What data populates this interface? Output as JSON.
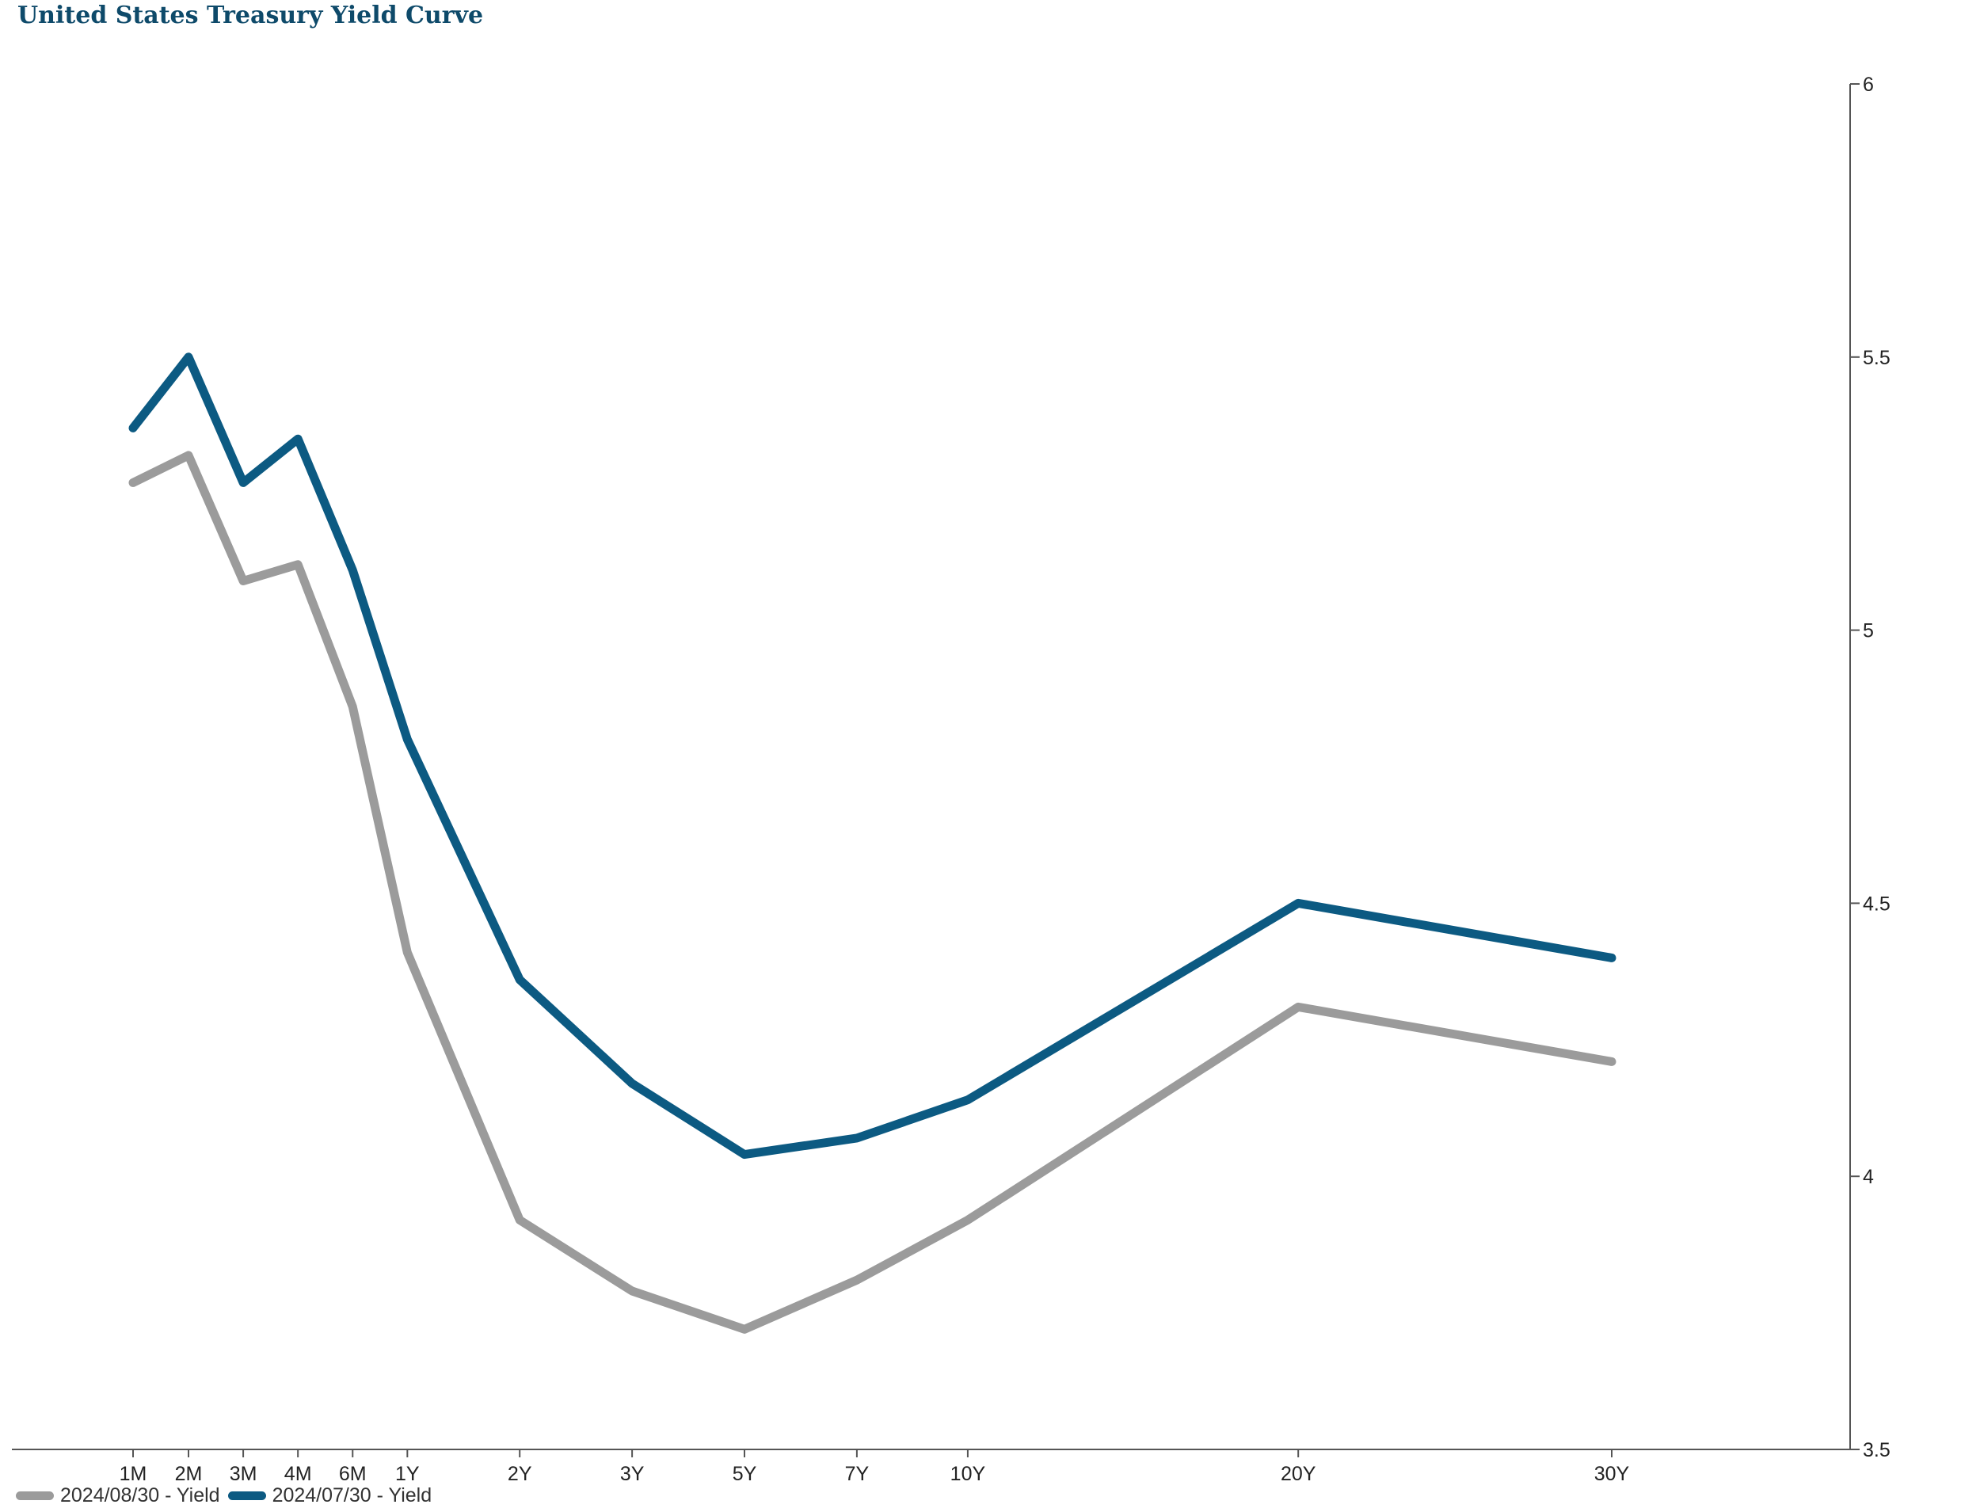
{
  "chart_data": {
    "type": "line",
    "title": "United States Treasury Yield Curve",
    "xlabel": "",
    "ylabel": "",
    "categories": [
      "1M",
      "2M",
      "3M",
      "4M",
      "6M",
      "1Y",
      "2Y",
      "3Y",
      "5Y",
      "7Y",
      "10Y",
      "20Y",
      "30Y"
    ],
    "x_months": [
      1,
      2,
      3,
      4,
      6,
      12,
      24,
      36,
      60,
      84,
      120,
      240,
      360
    ],
    "ylim": [
      3.5,
      6
    ],
    "yticks": [
      "6",
      "5.5",
      "5",
      "4.5",
      "4",
      "3.5"
    ],
    "ytick_values": [
      6,
      5.5,
      5,
      4.5,
      4,
      3.5
    ],
    "y_axis_side": "right",
    "grid": false,
    "legend_position": "bottom-left",
    "series": [
      {
        "name": "2024/08/30 - Yield",
        "color": "#9b9b9b",
        "values": [
          5.27,
          5.32,
          5.09,
          5.12,
          4.86,
          4.41,
          3.92,
          3.79,
          3.72,
          3.81,
          3.92,
          4.31,
          4.21
        ]
      },
      {
        "name": "2024/07/30 - Yield",
        "color": "#0c5a82",
        "values": [
          5.37,
          5.5,
          5.27,
          5.35,
          5.11,
          4.8,
          4.36,
          4.17,
          4.04,
          4.07,
          4.14,
          4.5,
          4.4
        ]
      }
    ]
  }
}
